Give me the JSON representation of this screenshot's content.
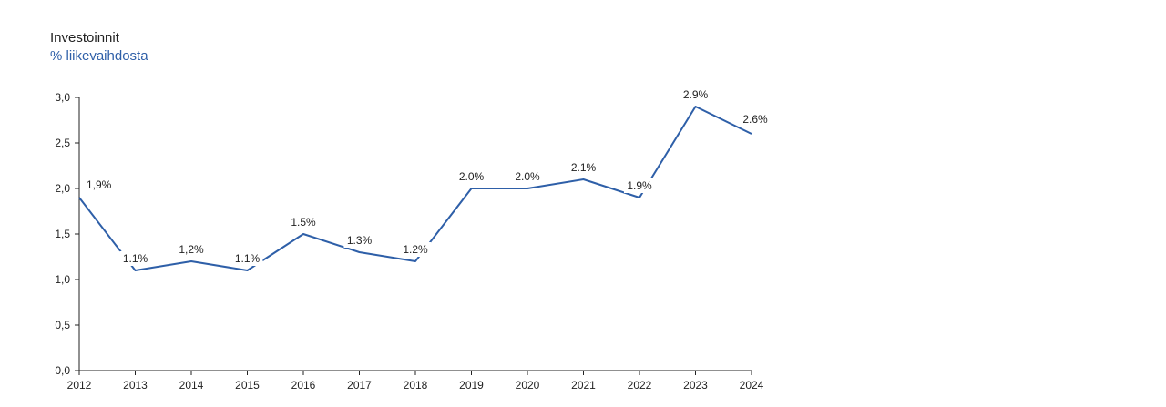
{
  "chart_data": {
    "type": "line",
    "title": "Investoinnit",
    "subtitle": "% liikevaihdosta",
    "x": [
      "2012",
      "2013",
      "2014",
      "2015",
      "2016",
      "2017",
      "2018",
      "2019",
      "2020",
      "2021",
      "2022",
      "2023",
      "2024"
    ],
    "series": [
      {
        "values": [
          1.9,
          1.1,
          1.2,
          1.1,
          1.5,
          1.3,
          1.2,
          2.0,
          2.0,
          2.1,
          1.9,
          2.9,
          2.6
        ],
        "labels": [
          "1,9%",
          "1.1%",
          "1,2%",
          "1.1%",
          "1.5%",
          "1.3%",
          "1.2%",
          "2.0%",
          "2.0%",
          "2.1%",
          "1.9%",
          "2.9%",
          "2.6%"
        ]
      }
    ],
    "ylim": [
      0,
      3
    ],
    "yticks": [
      "0,0",
      "0,5",
      "1,0",
      "1,5",
      "2,0",
      "2,5",
      "3,0"
    ],
    "grid": false,
    "colors": {
      "line": "#2e5fa8",
      "subtitle": "#2e5fa8",
      "axis": "#222222"
    }
  }
}
